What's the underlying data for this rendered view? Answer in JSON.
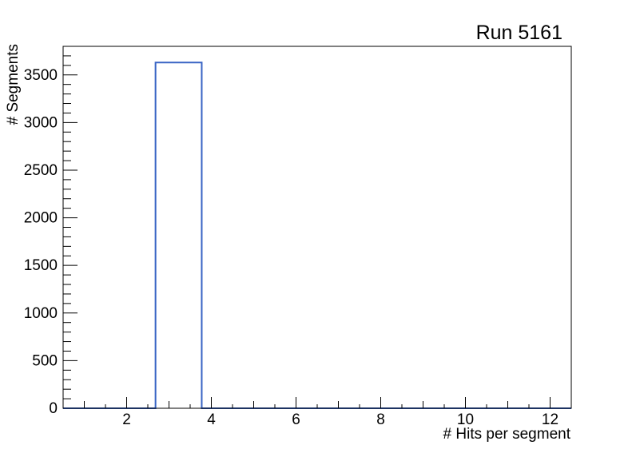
{
  "page": {
    "background": "#ffffff"
  },
  "chart_data": {
    "type": "bar",
    "subtype": "histogram-step",
    "title": "Run 5161",
    "xlabel": "# Hits per segment",
    "ylabel": "# Segments",
    "xlim": [
      0.5,
      12.5
    ],
    "ylim": [
      0,
      3800
    ],
    "x_labeled_ticks": [
      2,
      4,
      6,
      8,
      10,
      12
    ],
    "x_minor_step": 0.5,
    "y_labeled_ticks": [
      0,
      500,
      1000,
      1500,
      2000,
      2500,
      3000,
      3500
    ],
    "y_minor_step": 100,
    "bin_edges": [
      0.5,
      1.591,
      2.682,
      3.773,
      4.864,
      5.955,
      7.045,
      8.136,
      9.227,
      10.318,
      11.409,
      12.5
    ],
    "counts": [
      0,
      0,
      3630,
      0,
      0,
      0,
      0,
      0,
      0,
      0,
      0
    ],
    "line_color": "#3864c4",
    "axis_color": "#000000",
    "text_color": "#000000",
    "grid": false,
    "legend": null,
    "background": "#ffffff"
  }
}
